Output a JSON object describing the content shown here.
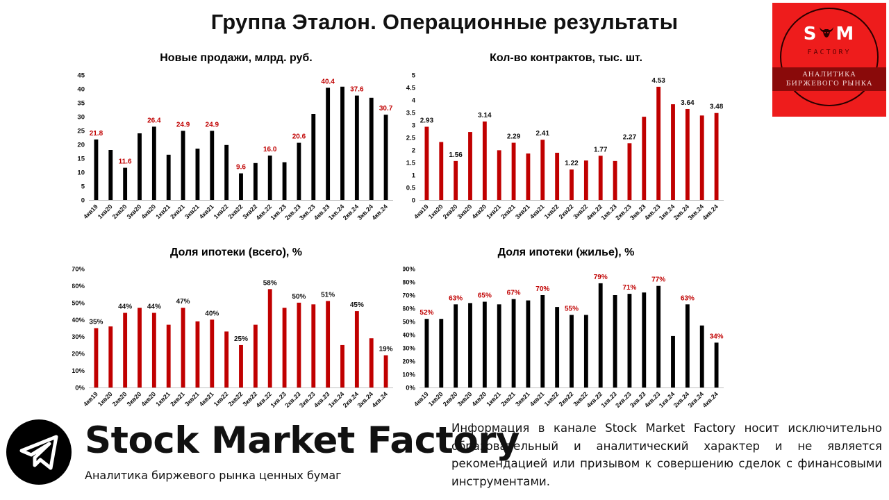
{
  "page": {
    "title": "Группа Эталон. Операционные результаты"
  },
  "colors": {
    "red": "#c00000",
    "black": "#000000",
    "label_red": "#c00000",
    "label_black": "#111111"
  },
  "logo": {
    "letter_left": "S",
    "letter_right": "M",
    "factory": "FACTORY",
    "line1": "АНАЛИТИКА",
    "line2": "БИРЖЕВОГО РЫНКА"
  },
  "footer": {
    "icon": "telegram-icon",
    "brand_name": "Stock Market Factory",
    "brand_sub": "Аналитика биржевого рынка ценных бумаг",
    "disclaimer": "Информация в канале Stock Market Factory носит исключительно образовательный и аналитический характер и не является рекомендацией или призывом к совершению сделок с финансовыми инструментами."
  },
  "chart_data": [
    {
      "id": "new-sales",
      "type": "bar",
      "title": "Новые продажи, млрд. руб.",
      "bar_color": "#000000",
      "label_color": "#c00000",
      "ylim": [
        0,
        45
      ],
      "yticks": [
        "0",
        "5",
        "10",
        "15",
        "20",
        "25",
        "30",
        "35",
        "40",
        "45"
      ],
      "categories": [
        "4кв19",
        "1кв20",
        "2кв20",
        "3кв20",
        "4кв20",
        "1кв21",
        "2кв21",
        "3кв21",
        "4кв21",
        "1кв22",
        "2кв22",
        "3кв22",
        "4кв.22",
        "1кв.23",
        "2кв.23",
        "3кв.23",
        "4кв.23",
        "1кв.24",
        "2кв.24",
        "3кв.24",
        "4кв.24"
      ],
      "values": [
        21.8,
        18.0,
        11.6,
        24.0,
        26.4,
        16.3,
        24.9,
        18.5,
        24.9,
        19.8,
        9.6,
        13.3,
        16.0,
        13.6,
        20.6,
        31.0,
        40.4,
        40.8,
        37.6,
        36.8,
        30.7
      ],
      "data_labels": [
        "21.8",
        "",
        "11.6",
        "",
        "26.4",
        "",
        "24.9",
        "",
        "24.9",
        "",
        "9.6",
        "",
        "16.0",
        "",
        "20.6",
        "",
        "40.4",
        "",
        "37.6",
        "",
        "30.7"
      ]
    },
    {
      "id": "contracts",
      "type": "bar",
      "title": "Кол-во контрактов, тыс. шт.",
      "bar_color": "#c00000",
      "label_color": "#111111",
      "ylim": [
        0,
        5
      ],
      "yticks": [
        "0",
        "0.5",
        "1",
        "1.5",
        "2",
        "2.5",
        "3",
        "3.5",
        "4",
        "4.5",
        "5"
      ],
      "categories": [
        "4кв19",
        "1кв20",
        "2кв20",
        "3кв20",
        "4кв20",
        "1кв21",
        "2кв21",
        "3кв21",
        "4кв21",
        "1кв22",
        "2кв22",
        "3кв22",
        "4кв.22",
        "1кв.23",
        "2кв.23",
        "3кв.23",
        "4кв.23",
        "1кв.24",
        "2кв.24",
        "3кв.24",
        "4кв.24"
      ],
      "values": [
        2.93,
        2.32,
        1.56,
        2.72,
        3.14,
        1.99,
        2.29,
        1.86,
        2.41,
        1.89,
        1.22,
        1.58,
        1.77,
        1.56,
        2.27,
        3.33,
        4.53,
        3.83,
        3.64,
        3.38,
        3.48
      ],
      "data_labels": [
        "2.93",
        "",
        "1.56",
        "",
        "3.14",
        "",
        "2.29",
        "",
        "2.41",
        "",
        "1.22",
        "",
        "1.77",
        "",
        "2.27",
        "",
        "4.53",
        "",
        "3.64",
        "",
        "3.48"
      ]
    },
    {
      "id": "mortgage-total",
      "type": "bar",
      "title": "Доля ипотеки (всего), %",
      "bar_color": "#c00000",
      "label_color": "#111111",
      "ylim": [
        0,
        70
      ],
      "yticks": [
        "0%",
        "10%",
        "20%",
        "30%",
        "40%",
        "50%",
        "60%",
        "70%"
      ],
      "categories": [
        "4кв19",
        "1кв20",
        "2кв20",
        "3кв20",
        "4кв20",
        "1кв21",
        "2кв21",
        "3кв21",
        "4кв21",
        "1кв22",
        "2кв22",
        "3кв22",
        "4кв.22",
        "1кв.23",
        "2кв.23",
        "3кв.23",
        "4кв.23",
        "1кв.24",
        "2кв.24",
        "3кв.24",
        "4кв.24"
      ],
      "values": [
        35,
        36,
        44,
        47,
        44,
        37,
        47,
        39,
        40,
        33,
        25,
        37,
        58,
        47,
        50,
        49,
        51,
        25,
        45,
        29,
        19
      ],
      "data_labels": [
        "35%",
        "",
        "44%",
        "",
        "44%",
        "",
        "47%",
        "",
        "40%",
        "",
        "25%",
        "",
        "58%",
        "",
        "50%",
        "",
        "51%",
        "",
        "45%",
        "",
        "19%"
      ]
    },
    {
      "id": "mortgage-residential",
      "type": "bar",
      "title": "Доля ипотеки (жилье), %",
      "bar_color": "#000000",
      "label_color": "#c00000",
      "ylim": [
        0,
        90
      ],
      "yticks": [
        "0%",
        "10%",
        "20%",
        "30%",
        "40%",
        "50%",
        "60%",
        "70%",
        "80%",
        "90%"
      ],
      "categories": [
        "4кв19",
        "1кв20",
        "2кв20",
        "3кв20",
        "4кв20",
        "1кв21",
        "2кв21",
        "3кв21",
        "4кв21",
        "1кв22",
        "2кв22",
        "3кв22",
        "4кв.22",
        "1кв.23",
        "2кв.23",
        "3кв.23",
        "4кв.23",
        "1кв.24",
        "2кв.24",
        "3кв.24",
        "4кв.24"
      ],
      "values": [
        52,
        52,
        63,
        64,
        65,
        63,
        67,
        66,
        70,
        61,
        55,
        55,
        79,
        70,
        71,
        72,
        77,
        39,
        63,
        47,
        34
      ],
      "data_labels": [
        "52%",
        "",
        "63%",
        "",
        "65%",
        "",
        "67%",
        "",
        "70%",
        "",
        "55%",
        "",
        "79%",
        "",
        "71%",
        "",
        "77%",
        "",
        "63%",
        "",
        "34%"
      ]
    }
  ]
}
